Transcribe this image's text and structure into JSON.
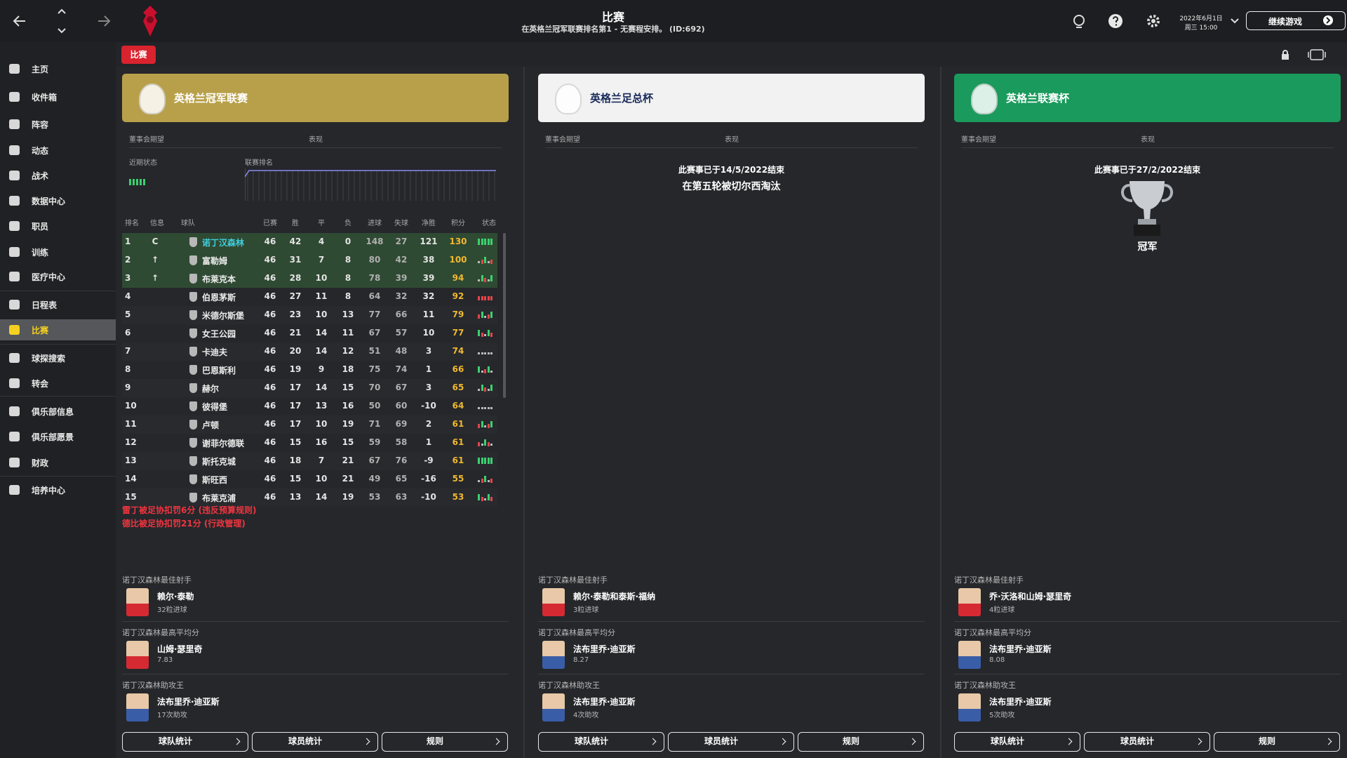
{
  "header": {
    "title": "比赛",
    "subtitle": "在英格兰冠军联赛排名第1 - 无赛程安排。 (ID:692)",
    "date": "2022年6月1日",
    "time": "周三 15:00",
    "continue": "继续游戏"
  },
  "sidebar": {
    "items": [
      {
        "label": "主页"
      },
      {
        "label": "收件箱"
      },
      {
        "label": "阵容"
      },
      {
        "label": "动态"
      },
      {
        "label": "战术"
      },
      {
        "label": "数据中心"
      },
      {
        "label": "职员"
      },
      {
        "label": "训练"
      },
      {
        "label": "医疗中心"
      },
      {
        "label": "日程表"
      },
      {
        "label": "比赛",
        "selected": true
      },
      {
        "label": "球探搜索"
      },
      {
        "label": "转会"
      },
      {
        "label": "俱乐部信息"
      },
      {
        "label": "俱乐部愿景"
      },
      {
        "label": "财政"
      },
      {
        "label": "培养中心"
      }
    ]
  },
  "tab": "比赛",
  "panels": [
    {
      "name": "英格兰冠军联赛",
      "color": "#b8a04a",
      "text_color": "#ffffff",
      "board_label": "董事会期望",
      "performance_label": "表现",
      "form_label": "近期状态",
      "position_label": "联赛排名",
      "table": {
        "headers": [
          "排名",
          "信息",
          "球队",
          "已赛",
          "胜",
          "平",
          "负",
          "进球",
          "失球",
          "净胜",
          "积分",
          "状态"
        ],
        "rows": [
          [
            1,
            "C",
            "诺丁汉森林",
            46,
            42,
            4,
            0,
            148,
            27,
            121,
            130
          ],
          [
            2,
            "↑",
            "富勒姆",
            46,
            31,
            7,
            8,
            80,
            42,
            38,
            100
          ],
          [
            3,
            "↑",
            "布莱克本",
            46,
            28,
            10,
            8,
            78,
            39,
            39,
            94
          ],
          [
            4,
            null,
            "伯恩茅斯",
            46,
            27,
            11,
            8,
            64,
            32,
            32,
            92
          ],
          [
            5,
            null,
            "米德尔斯堡",
            46,
            23,
            10,
            13,
            77,
            66,
            11,
            79
          ],
          [
            6,
            null,
            "女王公园",
            46,
            21,
            14,
            11,
            67,
            57,
            10,
            77
          ],
          [
            7,
            null,
            "卡迪夫",
            46,
            20,
            14,
            12,
            51,
            48,
            3,
            74
          ],
          [
            8,
            null,
            "巴恩斯利",
            46,
            19,
            9,
            18,
            75,
            74,
            1,
            66
          ],
          [
            9,
            null,
            "赫尔",
            46,
            17,
            14,
            15,
            70,
            67,
            3,
            65
          ],
          [
            10,
            null,
            "彼得堡",
            46,
            17,
            13,
            16,
            50,
            60,
            -10,
            64
          ],
          [
            11,
            null,
            "卢顿",
            46,
            17,
            10,
            19,
            71,
            69,
            2,
            61
          ],
          [
            12,
            null,
            "谢菲尔德联",
            46,
            15,
            16,
            15,
            59,
            58,
            1,
            61
          ],
          [
            13,
            null,
            "斯托克城",
            46,
            18,
            7,
            21,
            67,
            76,
            -9,
            61
          ],
          [
            14,
            null,
            "斯旺西",
            46,
            15,
            10,
            21,
            49,
            65,
            -16,
            55
          ],
          [
            15,
            null,
            "布莱克浦",
            46,
            13,
            14,
            19,
            53,
            63,
            -10,
            53
          ]
        ]
      },
      "notes": [
        "雷丁被足协扣罚6分 (违反预算规则)",
        "德比被足协扣罚21分 (行政管理)"
      ],
      "sections": [
        {
          "title": "诺丁汉森林最佳射手",
          "player": "赖尔·泰勒",
          "detail": "32粒进球"
        },
        {
          "title": "诺丁汉森林最高平均分",
          "player": "山姆·瑟里奇",
          "detail": "7.83"
        },
        {
          "title": "诺丁汉森林助攻王",
          "player": "法布里乔·迪亚斯",
          "detail": "17次助攻"
        }
      ],
      "buttons": [
        "球队统计",
        "球员统计",
        "规则"
      ]
    },
    {
      "name": "英格兰足总杯",
      "color": "#f2f2f2",
      "text_color": "#1a2a5a",
      "board_label": "董事会期望",
      "performance_label": "表现",
      "status": [
        "此赛事已于14/5/2022结束",
        "在第五轮被切尔西淘汰"
      ],
      "sections": [
        {
          "title": "诺丁汉森林最佳射手",
          "player": "赖尔·泰勒和泰斯·福纳",
          "detail": "3粒进球"
        },
        {
          "title": "诺丁汉森林最高平均分",
          "player": "法布里乔·迪亚斯",
          "detail": "8.27"
        },
        {
          "title": "诺丁汉森林助攻王",
          "player": "法布里乔·迪亚斯",
          "detail": "4次助攻"
        }
      ],
      "buttons": [
        "球队统计",
        "球员统计",
        "规则"
      ]
    },
    {
      "name": "英格兰联赛杯",
      "color": "#1a9a5c",
      "text_color": "#ffffff",
      "board_label": "董事会期望",
      "performance_label": "表现",
      "status": [
        "此赛事已于27/2/2022结束"
      ],
      "result": "冠军",
      "sections": [
        {
          "title": "诺丁汉森林最佳射手",
          "player": "乔·沃洛和山姆·瑟里奇",
          "detail": "4粒进球"
        },
        {
          "title": "诺丁汉森林最高平均分",
          "player": "法布里乔·迪亚斯",
          "detail": "8.08"
        },
        {
          "title": "诺丁汉森林助攻王",
          "player": "法布里乔·迪亚斯",
          "detail": "5次助攻"
        }
      ],
      "buttons": [
        "球队统计",
        "球员统计",
        "规则"
      ]
    }
  ]
}
